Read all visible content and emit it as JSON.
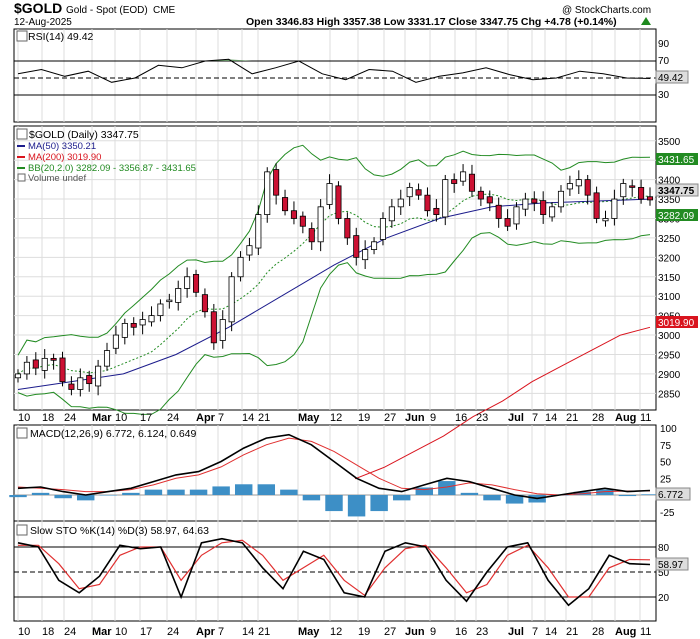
{
  "header": {
    "symbol": "$GOLD",
    "description": "Gold - Spot (EOD)",
    "exchange": "CME",
    "date": "12-Aug-2025",
    "ohlc": "Open 3346.83  High 3357.38  Low 3331.17  Close 3347.75  Chg +4.78 (+0.14%)",
    "copyright": "@ StockCharts.com",
    "ohlc_arrow_color": "#1f8a1f"
  },
  "colors": {
    "up_candle": "#ffffff",
    "down_candle": "#cc1133",
    "ma50": "#1c1c8c",
    "ma200": "#d9141e",
    "bollinger": "#228b22",
    "rsi_fill": "#5a9a5a",
    "macd_line": "#000000",
    "macd_signal": "#e03030",
    "histogram": "#3d8fc6",
    "sto_k": "#000000",
    "sto_d": "#e03030"
  },
  "rsi": {
    "label": "RSI(14) 49.42",
    "current": "49.42",
    "ticks": [
      "90",
      "70",
      "50",
      "30"
    ]
  },
  "price": {
    "title": "$GOLD (Daily) 3347.75",
    "legend": [
      {
        "text": "MA(50) 3350.21",
        "color": "#1c1c8c"
      },
      {
        "text": "MA(200) 3019.90",
        "color": "#d9141e"
      },
      {
        "text": "BB(20,2.0) 3282.09 - 3356.87 - 3431.65",
        "color": "#228b22"
      },
      {
        "text": "Volume undef",
        "color": "#000000"
      }
    ],
    "ticks": [
      "3500",
      "3450",
      "3400",
      "3350",
      "3300",
      "3250",
      "3200",
      "3150",
      "3100",
      "3050",
      "3000",
      "2950",
      "2900",
      "2850"
    ],
    "flags": [
      {
        "text": "3431.65",
        "color": "#ffffff",
        "bg": "#228b22"
      },
      {
        "text": "3347.75",
        "color": "#000000",
        "bg": "#dddddd"
      },
      {
        "text": "3282.09",
        "color": "#ffffff",
        "bg": "#228b22"
      },
      {
        "text": "3019.90",
        "color": "#ffffff",
        "bg": "#d9141e"
      }
    ]
  },
  "x_axis": {
    "labels": [
      "10",
      "18",
      "24",
      "Mar",
      "10",
      "17",
      "24",
      "Apr",
      "7",
      "14",
      "21",
      "May",
      "12",
      "19",
      "27",
      "Jun",
      "9",
      "16",
      "23",
      "Jul",
      "7",
      "14",
      "21",
      "28",
      "Aug",
      "11"
    ]
  },
  "macd": {
    "label": "MACD(12,26,9) 6.772, 6.124, 0.649",
    "ticks": [
      "100",
      "75",
      "50",
      "25",
      "0",
      "-25"
    ],
    "current": "6.772"
  },
  "sto": {
    "label": "Slow STO %K(14) %D(3) 58.97, 64.63",
    "ticks": [
      "80",
      "50",
      "20"
    ],
    "current": "58.97"
  },
  "chart_data": {
    "type": "candlestick",
    "title": "$GOLD (Daily) 3347.75",
    "x": [
      "2025-02-10",
      "2025-08-12"
    ],
    "price_close_path": [
      2900,
      2930,
      2915,
      2940,
      2935,
      2880,
      2860,
      2890,
      2875,
      2920,
      2960,
      3000,
      3030,
      3020,
      3040,
      3050,
      3080,
      3090,
      3120,
      3150,
      3110,
      3060,
      2980,
      3040,
      3150,
      3200,
      3230,
      3310,
      3420,
      3360,
      3320,
      3300,
      3280,
      3240,
      3330,
      3390,
      3300,
      3250,
      3200,
      3220,
      3240,
      3300,
      3330,
      3350,
      3380,
      3360,
      3320,
      3310,
      3400,
      3390,
      3420,
      3370,
      3350,
      3340,
      3300,
      3280,
      3330,
      3350,
      3340,
      3310,
      3330,
      3370,
      3390,
      3400,
      3360,
      3300,
      3300,
      3350,
      3390,
      3380,
      3350,
      3347.75
    ],
    "ylim": [
      2820,
      3520
    ],
    "ma50_path": [
      2860,
      2880,
      2900,
      2950,
      3020,
      3100,
      3180,
      3250,
      3300,
      3330,
      3340,
      3345,
      3350
    ],
    "ma200_path": [
      2630,
      2660,
      2700,
      2740,
      2790,
      2830,
      2880,
      2920,
      2960,
      3000,
      3019.9
    ],
    "rsi_path": [
      55,
      60,
      52,
      58,
      45,
      50,
      65,
      62,
      70,
      72,
      55,
      62,
      70,
      55,
      48,
      60,
      58,
      45,
      52,
      56,
      62,
      54,
      48,
      50,
      58,
      55,
      50,
      49.42
    ],
    "macd_path": [
      10,
      12,
      5,
      0,
      5,
      10,
      20,
      30,
      35,
      50,
      70,
      85,
      90,
      75,
      50,
      25,
      10,
      5,
      15,
      25,
      20,
      10,
      0,
      -5,
      0,
      5,
      10,
      5,
      6.772
    ],
    "signal_path": [
      12,
      10,
      8,
      5,
      5,
      8,
      15,
      25,
      30,
      42,
      60,
      75,
      85,
      80,
      65,
      45,
      25,
      10,
      8,
      12,
      18,
      15,
      8,
      2,
      0,
      2,
      5,
      6,
      6.124
    ],
    "sto_k_path": [
      85,
      80,
      40,
      25,
      45,
      82,
      78,
      80,
      20,
      85,
      90,
      85,
      55,
      30,
      75,
      65,
      25,
      20,
      75,
      85,
      80,
      40,
      15,
      50,
      80,
      85,
      40,
      10,
      30,
      70,
      60,
      58.97
    ],
    "sto_d_path": [
      82,
      82,
      60,
      30,
      35,
      70,
      80,
      80,
      40,
      70,
      85,
      88,
      70,
      40,
      55,
      70,
      40,
      22,
      55,
      78,
      82,
      55,
      25,
      35,
      70,
      82,
      55,
      20,
      20,
      55,
      65,
      64.63
    ]
  }
}
